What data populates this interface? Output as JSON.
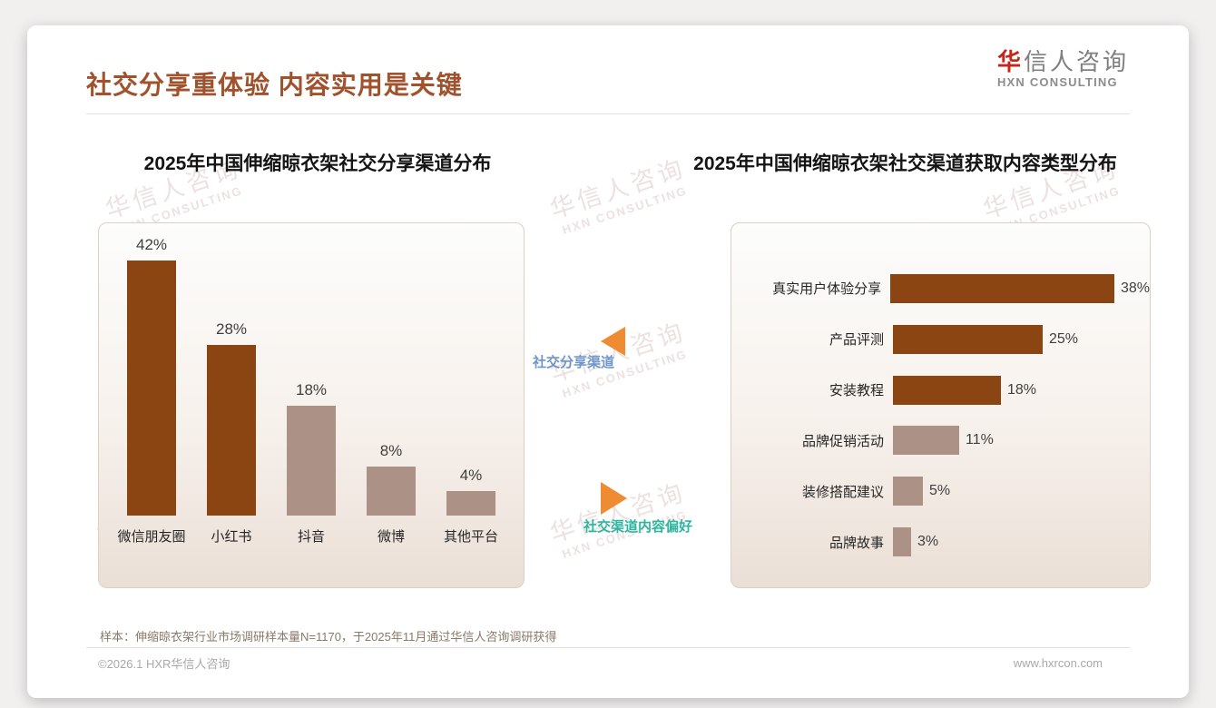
{
  "page": {
    "title": "社交分享重体验 内容实用是关键",
    "logo": {
      "brand_first": "华",
      "brand_rest": "信人咨询",
      "subtitle": "HXN CONSULTING"
    },
    "watermark": {
      "line1": "华信人咨询",
      "line2": "HXN CONSULTING"
    },
    "sample_note": "样本：伸缩晾衣架行业市场调研样本量N=1170，于2025年11月通过华信人咨询调研获得",
    "footer_left": "©2026.1 HXR华信人咨询",
    "footer_right": "www.hxrcon.com"
  },
  "annotations": {
    "left_pointer_label": "社交分享渠道",
    "right_pointer_label": "社交渠道内容偏好"
  },
  "colors": {
    "dark_brown": "#8b4513",
    "muted_mauve": "#ab9186",
    "title_brown": "#a0522d",
    "pointer_orange": "#ee8b33",
    "pointer_label_blue": "#6e96c8",
    "pointer_label_teal": "#2eb5a0"
  },
  "chart_data": [
    {
      "type": "bar",
      "orientation": "vertical",
      "title": "2025年中国伸缩晾衣架社交分享渠道分布",
      "categories": [
        "微信朋友圈",
        "小红书",
        "抖音",
        "微博",
        "其他平台"
      ],
      "values": [
        42,
        28,
        18,
        8,
        4
      ],
      "value_labels": [
        "42%",
        "28%",
        "18%",
        "8%",
        "4%"
      ],
      "bar_colors": [
        "#8b4513",
        "#8b4513",
        "#ab9186",
        "#ab9186",
        "#ab9186"
      ],
      "unit": "%",
      "ylim": [
        0,
        45
      ],
      "grid": false,
      "legend": false
    },
    {
      "type": "bar",
      "orientation": "horizontal",
      "title": "2025年中国伸缩晾衣架社交渠道获取内容类型分布",
      "categories": [
        "真实用户体验分享",
        "产品评测",
        "安装教程",
        "品牌促销活动",
        "装修搭配建议",
        "品牌故事"
      ],
      "values": [
        38,
        25,
        18,
        11,
        5,
        3
      ],
      "value_labels": [
        "38%",
        "25%",
        "18%",
        "11%",
        "5%",
        "3%"
      ],
      "bar_colors": [
        "#8b4513",
        "#8b4513",
        "#8b4513",
        "#ab9186",
        "#ab9186",
        "#ab9186"
      ],
      "unit": "%",
      "xlim": [
        0,
        40
      ],
      "grid": false,
      "legend": false
    }
  ]
}
